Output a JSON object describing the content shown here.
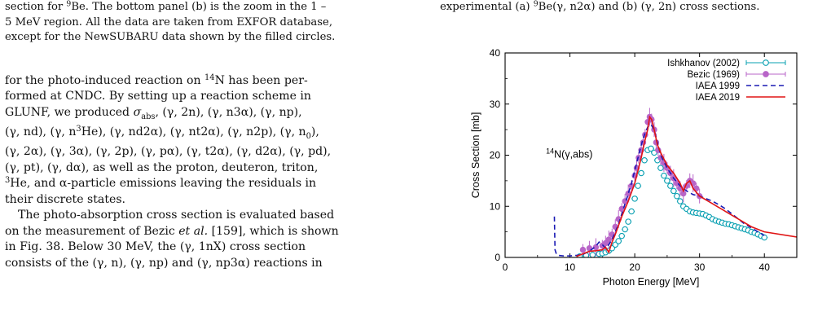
{
  "left_column": {
    "caption_tail": {
      "l1_a": "section for ",
      "l1_sup": "9",
      "l1_b": "Be. The bottom panel (b) is the zoom in the 1 –",
      "l2": "5 MeV region. All the data are taken from EXFOR database,",
      "l3": "except for the NewSUBARU data shown by the filled circles."
    },
    "body_p1": {
      "l1_a": "for the photo-induced reaction on ",
      "l1_sup": "14",
      "l1_b": "N has been per-",
      "l2": "formed at CNDC. By setting up a reaction scheme in",
      "l3_a": "GLUNF, we produced ",
      "l3_math": "σ",
      "l3_sub": "abs",
      "l3_b": ", (γ, 2n), (γ, n3α), (γ, np),",
      "l4_a": "(γ, nd), (γ, n",
      "l4_sup": "3",
      "l4_b": "He), (γ, nd2α), (γ, nt2α), (γ, n2p), (γ, n",
      "l4_sub": "0",
      "l4_c": "),",
      "l5": "(γ, 2α), (γ, 3α), (γ, 2p), (γ, pα), (γ, t2α), (γ, d2α), (γ, pd),",
      "l6": "(γ, pt), (γ, dα), as well as the proton, deuteron, triton,",
      "l7_sup": "3",
      "l7_b": "He, and α-particle emissions leaving the residuals in",
      "l8": "their discrete states."
    },
    "body_p2": {
      "l1": "The photo-absorption cross section is evaluated based",
      "l2_a": "on the measurement of Bezic ",
      "l2_em": "et al.",
      "l2_b": " [159], which is shown",
      "l3": "in Fig. 38. Below 30 MeV, the (γ, 1nX) cross section",
      "l4": "consists of the (γ, n), (γ, np) and (γ, np3α) reactions in"
    }
  },
  "right_column": {
    "caption_tail": {
      "a": "experimental (a) ",
      "sup": "9",
      "b": "Be(γ, n2α) and (b) (γ, 2n) cross sections."
    }
  },
  "figure": {
    "annotation": {
      "sup": "14",
      "text": "N(γ,abs)"
    },
    "colors": {
      "ishkhanov": "#0aa0b2",
      "bezic": "#b865c8",
      "iaea1999": "#1a1ab4",
      "iaea2019": "#e01515"
    },
    "chart_data": {
      "type": "line",
      "xlabel": "Photon Energy [MeV]",
      "ylabel": "Cross Section [mb]",
      "xlim": [
        0,
        45
      ],
      "ylim": [
        0,
        40
      ],
      "xticks": [
        0,
        10,
        20,
        30,
        40
      ],
      "yticks": [
        0,
        10,
        20,
        30,
        40
      ],
      "legend_position": "top-right",
      "series": [
        {
          "name": "Ishkhanov (2002)",
          "style": "open-circles-errorbars",
          "x": [
            11.5,
            12.5,
            13.5,
            14.5,
            15.0,
            15.5,
            16.0,
            16.5,
            17.0,
            17.5,
            18.0,
            18.5,
            19.0,
            19.5,
            20.0,
            20.5,
            21.0,
            21.5,
            22.0,
            22.5,
            23.0,
            23.5,
            24.0,
            24.5,
            25.0,
            25.5,
            26.0,
            26.5,
            27.0,
            27.5,
            28.0,
            28.5,
            29.0,
            29.5,
            30.0,
            30.5,
            31.0,
            31.5,
            32.0,
            32.5,
            33.0,
            33.5,
            34.0,
            34.5,
            35.0,
            35.5,
            36.0,
            36.5,
            37.0,
            37.5,
            38.0,
            38.5,
            39.0,
            39.5,
            40.0
          ],
          "y": [
            0.2,
            0.4,
            0.5,
            0.7,
            0.8,
            1.0,
            1.3,
            1.8,
            2.5,
            3.2,
            4.2,
            5.5,
            7.0,
            9.0,
            11.5,
            14.0,
            16.5,
            19.0,
            21.0,
            21.3,
            20.5,
            19.0,
            17.5,
            16.0,
            15.0,
            14.0,
            13.0,
            12.0,
            11.0,
            10.0,
            9.5,
            9.0,
            8.8,
            8.7,
            8.6,
            8.5,
            8.2,
            7.9,
            7.5,
            7.2,
            7.0,
            6.8,
            6.6,
            6.5,
            6.3,
            6.1,
            5.9,
            5.7,
            5.5,
            5.3,
            5.0,
            4.8,
            4.5,
            4.2,
            3.9
          ]
        },
        {
          "name": "Bezic (1969)",
          "style": "filled-circles-errorbars",
          "x": [
            12.0,
            13.0,
            14.0,
            15.0,
            15.5,
            16.0,
            16.5,
            17.0,
            17.5,
            18.0,
            18.5,
            19.0,
            19.5,
            20.0,
            20.3,
            20.6,
            21.0,
            21.3,
            21.6,
            22.0,
            22.3,
            22.6,
            23.0,
            23.3,
            23.6,
            24.0,
            24.5,
            25.0,
            25.5,
            26.0,
            26.5,
            27.0,
            27.5,
            28.0,
            28.5,
            29.0,
            29.5,
            30.0
          ],
          "y": [
            1.5,
            1.8,
            2.0,
            2.3,
            2.8,
            3.5,
            4.5,
            6.0,
            7.5,
            9.5,
            11.0,
            12.5,
            14.0,
            16.0,
            17.5,
            19.5,
            21.0,
            22.5,
            24.0,
            26.5,
            27.5,
            27.0,
            25.0,
            22.5,
            21.0,
            19.5,
            18.5,
            17.5,
            16.5,
            15.5,
            14.5,
            13.5,
            12.5,
            14.0,
            15.0,
            14.5,
            13.5,
            12.0
          ]
        },
        {
          "name": "IAEA 1999",
          "style": "dashed",
          "x": [
            7.6,
            7.7,
            7.9,
            8.2,
            9.0,
            10.0,
            11.0,
            12.0,
            13.0,
            14.0,
            14.5,
            15.0,
            15.5,
            16.0,
            16.5,
            17.0,
            17.5,
            18.0,
            18.5,
            19.0,
            19.5,
            20.0,
            20.5,
            21.0,
            21.5,
            22.0,
            22.5,
            23.0,
            23.5,
            24.0,
            25.0,
            26.0,
            27.0,
            28.0,
            29.0,
            30.0,
            31.0,
            32.0,
            33.0,
            34.0,
            35.0,
            36.0,
            37.0,
            38.0,
            39.0,
            40.0
          ],
          "y": [
            8.0,
            1.5,
            0.7,
            0.4,
            0.3,
            0.3,
            0.4,
            0.6,
            1.2,
            2.2,
            3.0,
            2.5,
            1.8,
            2.5,
            3.5,
            5.0,
            6.5,
            8.5,
            10.5,
            12.5,
            14.5,
            17.0,
            19.5,
            22.0,
            24.0,
            25.5,
            26.0,
            25.0,
            22.5,
            20.0,
            17.5,
            15.5,
            14.0,
            13.0,
            12.3,
            12.0,
            11.5,
            11.0,
            10.3,
            9.5,
            8.5,
            7.5,
            6.5,
            5.8,
            5.0,
            4.3
          ]
        },
        {
          "name": "IAEA 2019",
          "style": "solid",
          "x": [
            11.0,
            12.0,
            13.0,
            14.0,
            15.0,
            15.5,
            16.0,
            16.5,
            17.0,
            18.0,
            19.0,
            20.0,
            20.5,
            21.0,
            21.5,
            22.0,
            22.3,
            22.6,
            23.0,
            23.5,
            24.0,
            25.0,
            26.0,
            27.0,
            27.5,
            28.0,
            28.5,
            29.0,
            30.0,
            32.0,
            34.0,
            36.0,
            38.0,
            40.0,
            45.0
          ],
          "y": [
            0.2,
            0.7,
            1.2,
            1.3,
            1.5,
            2.0,
            1.0,
            3.0,
            4.5,
            8.0,
            11.0,
            14.5,
            17.0,
            19.5,
            22.5,
            25.0,
            27.5,
            27.0,
            25.0,
            22.0,
            20.5,
            18.0,
            16.5,
            14.5,
            13.0,
            14.5,
            15.0,
            13.5,
            12.0,
            10.5,
            9.0,
            7.5,
            6.0,
            5.0,
            4.0
          ]
        }
      ]
    }
  }
}
